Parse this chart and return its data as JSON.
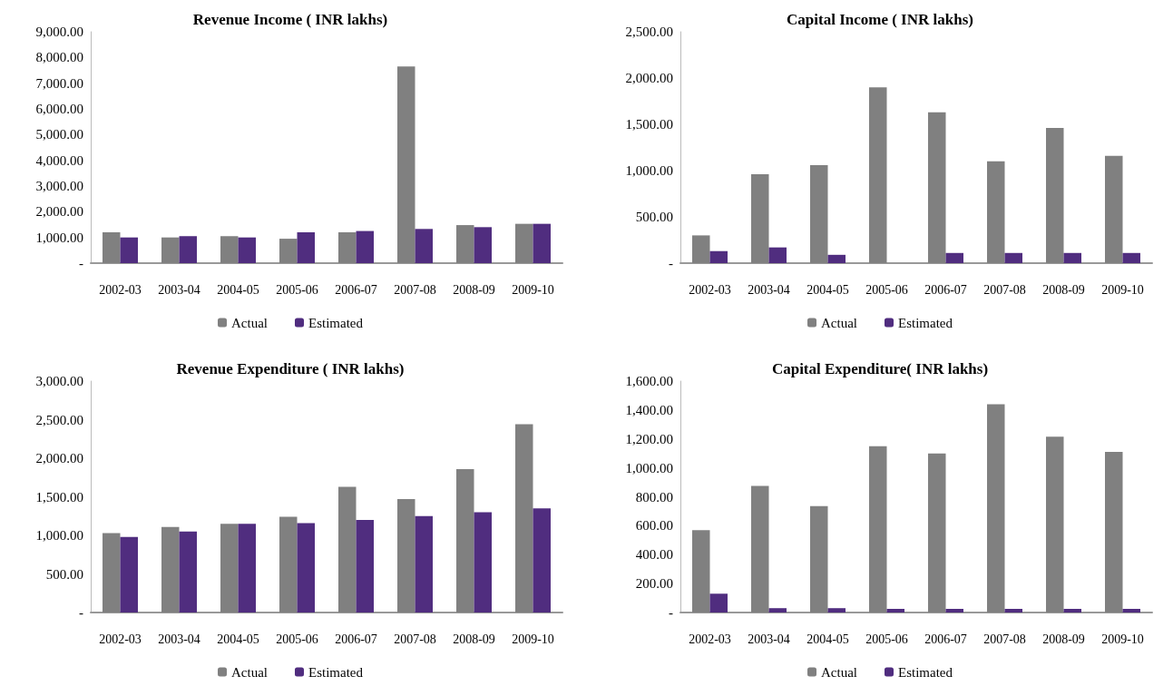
{
  "chart_data": [
    {
      "type": "bar",
      "title": "Revenue Income ( INR lakhs)",
      "categories": [
        "2002-03",
        "2003-04",
        "2004-05",
        "2005-06",
        "2006-07",
        "2007-08",
        "2008-09",
        "2009-10"
      ],
      "series": [
        {
          "name": "Actual",
          "color": "#808080",
          "values": [
            1200,
            1000,
            1050,
            950,
            1200,
            7650,
            1480,
            1530
          ]
        },
        {
          "name": "Estimated",
          "color": "#502d7f",
          "values": [
            1000,
            1050,
            1000,
            1200,
            1250,
            1330,
            1400,
            1530
          ]
        }
      ],
      "ylim": [
        0,
        9000
      ],
      "yticks": [
        {
          "value": 0,
          "label": "-"
        },
        {
          "value": 1000,
          "label": "1,000.00"
        },
        {
          "value": 2000,
          "label": "2,000.00"
        },
        {
          "value": 3000,
          "label": "3,000.00"
        },
        {
          "value": 4000,
          "label": "4,000.00"
        },
        {
          "value": 5000,
          "label": "5,000.00"
        },
        {
          "value": 6000,
          "label": "6,000.00"
        },
        {
          "value": 7000,
          "label": "7,000.00"
        },
        {
          "value": 8000,
          "label": "8,000.00"
        },
        {
          "value": 9000,
          "label": "9,000.00"
        }
      ],
      "grid": false,
      "legend": "bottom"
    },
    {
      "type": "bar",
      "title": "Capital Income ( INR lakhs)",
      "categories": [
        "2002-03",
        "2003-04",
        "2004-05",
        "2005-06",
        "2006-07",
        "2007-08",
        "2008-09",
        "2009-10"
      ],
      "series": [
        {
          "name": "Actual",
          "color": "#808080",
          "values": [
            300,
            960,
            1060,
            1900,
            1630,
            1100,
            1460,
            1160
          ]
        },
        {
          "name": "Estimated",
          "color": "#502d7f",
          "values": [
            130,
            170,
            90,
            0,
            110,
            110,
            110,
            110
          ]
        }
      ],
      "ylim": [
        0,
        2500
      ],
      "yticks": [
        {
          "value": 0,
          "label": "-"
        },
        {
          "value": 500,
          "label": "500.00"
        },
        {
          "value": 1000,
          "label": "1,000.00"
        },
        {
          "value": 1500,
          "label": "1,500.00"
        },
        {
          "value": 2000,
          "label": "2,000.00"
        },
        {
          "value": 2500,
          "label": "2,500.00"
        }
      ],
      "grid": false,
      "legend": "bottom"
    },
    {
      "type": "bar",
      "title": "Revenue Expenditure ( INR lakhs)",
      "categories": [
        "2002-03",
        "2003-04",
        "2004-05",
        "2005-06",
        "2006-07",
        "2007-08",
        "2008-09",
        "2009-10"
      ],
      "series": [
        {
          "name": "Actual",
          "color": "#808080",
          "values": [
            1030,
            1110,
            1150,
            1240,
            1630,
            1470,
            1860,
            2440
          ]
        },
        {
          "name": "Estimated",
          "color": "#502d7f",
          "values": [
            980,
            1050,
            1150,
            1160,
            1200,
            1250,
            1300,
            1350
          ]
        }
      ],
      "ylim": [
        0,
        3000
      ],
      "yticks": [
        {
          "value": 0,
          "label": "-"
        },
        {
          "value": 500,
          "label": "500.00"
        },
        {
          "value": 1000,
          "label": "1,000.00"
        },
        {
          "value": 1500,
          "label": "1,500.00"
        },
        {
          "value": 2000,
          "label": "2,000.00"
        },
        {
          "value": 2500,
          "label": "2,500.00"
        },
        {
          "value": 3000,
          "label": "3,000.00"
        }
      ],
      "grid": false,
      "legend": "bottom"
    },
    {
      "type": "bar",
      "title": "Capital Expenditure( INR lakhs)",
      "categories": [
        "2002-03",
        "2003-04",
        "2004-05",
        "2005-06",
        "2006-07",
        "2007-08",
        "2008-09",
        "2009-10"
      ],
      "series": [
        {
          "name": "Actual",
          "color": "#808080",
          "values": [
            570,
            875,
            735,
            1150,
            1100,
            1440,
            1215,
            1110
          ]
        },
        {
          "name": "Estimated",
          "color": "#502d7f",
          "values": [
            130,
            30,
            30,
            25,
            25,
            25,
            25,
            25
          ]
        }
      ],
      "ylim": [
        0,
        1600
      ],
      "yticks": [
        {
          "value": 0,
          "label": "-"
        },
        {
          "value": 200,
          "label": "200.00"
        },
        {
          "value": 400,
          "label": "400.00"
        },
        {
          "value": 600,
          "label": "600.00"
        },
        {
          "value": 800,
          "label": "800.00"
        },
        {
          "value": 1000,
          "label": "1,000.00"
        },
        {
          "value": 1200,
          "label": "1,200.00"
        },
        {
          "value": 1400,
          "label": "1,400.00"
        },
        {
          "value": 1600,
          "label": "1,600.00"
        }
      ],
      "grid": false,
      "legend": "bottom"
    }
  ]
}
